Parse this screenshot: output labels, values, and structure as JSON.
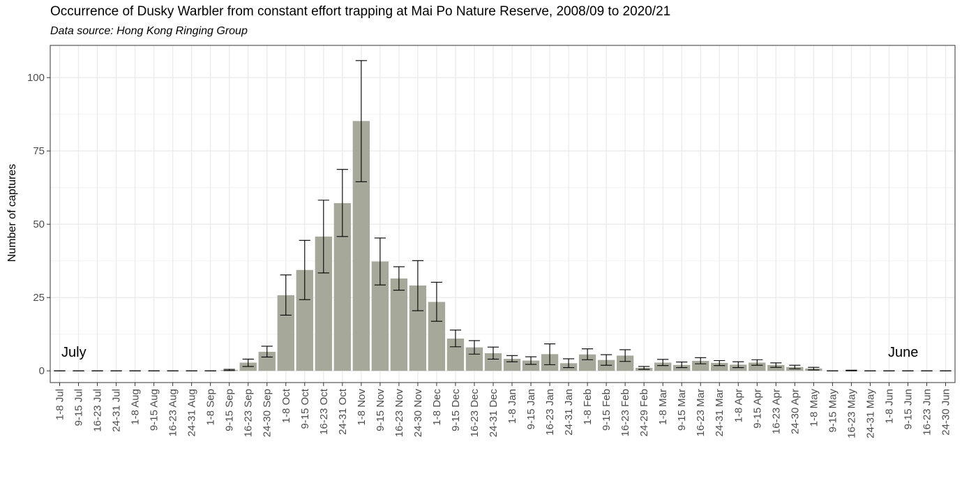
{
  "chart_data": {
    "type": "bar",
    "title": "Occurrence of Dusky Warbler from constant effort trapping at Mai Po Nature Reserve, 2008/09 to 2020/21",
    "subtitle": "Data source: Hong Kong Ringing Group",
    "xlabel": "",
    "ylabel": "Number of captures",
    "ylim": [
      -4,
      111
    ],
    "yticks": [
      0,
      25,
      50,
      75,
      100
    ],
    "grid": true,
    "bar_color": "#a6a899",
    "error_bar_color": "#000000",
    "annotations": [
      "July",
      "June"
    ],
    "categories": [
      "1-8 Jul",
      "9-15 Jul",
      "16-23 Jul",
      "24-31 Jul",
      "1-8 Aug",
      "9-15 Aug",
      "16-23 Aug",
      "24-31 Aug",
      "1-8 Sep",
      "9-15 Sep",
      "16-23 Sep",
      "24-30 Sep",
      "1-8 Oct",
      "9-15 Oct",
      "16-23 Oct",
      "24-31 Oct",
      "1-8 Nov",
      "9-15 Nov",
      "16-23 Nov",
      "24-30 Nov",
      "1-8 Dec",
      "9-15 Dec",
      "16-23 Dec",
      "24-31 Dec",
      "1-8 Jan",
      "9-15 Jan",
      "16-23 Jan",
      "24-31 Jan",
      "1-8 Feb",
      "9-15 Feb",
      "16-23 Feb",
      "24-29 Feb",
      "1-8 Mar",
      "9-15 Mar",
      "16-23 Mar",
      "24-31 Mar",
      "1-8 Apr",
      "9-15 Apr",
      "16-23 Apr",
      "24-30 Apr",
      "1-8 May",
      "9-15 May",
      "16-23 May",
      "24-31 May",
      "1-8 Jun",
      "9-15 Jun",
      "16-23 Jun",
      "24-30 Jun"
    ],
    "values": [
      0,
      0,
      0,
      0,
      0,
      0,
      0,
      0,
      0,
      0.3,
      2.8,
      6.5,
      25.8,
      34.4,
      45.8,
      57.2,
      85.2,
      37.3,
      31.5,
      29.1,
      23.5,
      11,
      8,
      6,
      4.1,
      3.5,
      5.7,
      2.6,
      5.6,
      3.7,
      5.2,
      1,
      2.8,
      2,
      3.4,
      2.7,
      2.1,
      2.8,
      2,
      1.3,
      0.8,
      0,
      0.1,
      0,
      0,
      0,
      0,
      0
    ],
    "err_low": [
      0,
      0,
      0,
      0,
      0,
      0,
      0,
      0,
      0,
      0.1,
      1.5,
      4.7,
      19,
      24.3,
      33.4,
      45.8,
      64.5,
      29.3,
      27.5,
      20.5,
      16.9,
      8.2,
      5.7,
      4,
      3.1,
      2.2,
      2.1,
      1.1,
      3.8,
      1.9,
      3.2,
      0.5,
      1.8,
      1.1,
      2.4,
      1.8,
      1.1,
      1.9,
      1.2,
      0.7,
      0.3,
      0,
      0,
      0,
      0,
      0,
      0,
      0
    ],
    "err_high": [
      0,
      0,
      0,
      0,
      0,
      0,
      0,
      0,
      0,
      0.5,
      4,
      8.4,
      32.7,
      44.5,
      58.2,
      68.7,
      105.8,
      45.3,
      35.5,
      37.6,
      30.2,
      13.9,
      10.3,
      8.1,
      5.2,
      4.8,
      9.2,
      4.1,
      7.5,
      5.5,
      7.2,
      1.5,
      3.9,
      3,
      4.5,
      3.5,
      3.1,
      3.8,
      2.7,
      1.9,
      1.2,
      0,
      0.2,
      0,
      0,
      0,
      0,
      0
    ]
  }
}
